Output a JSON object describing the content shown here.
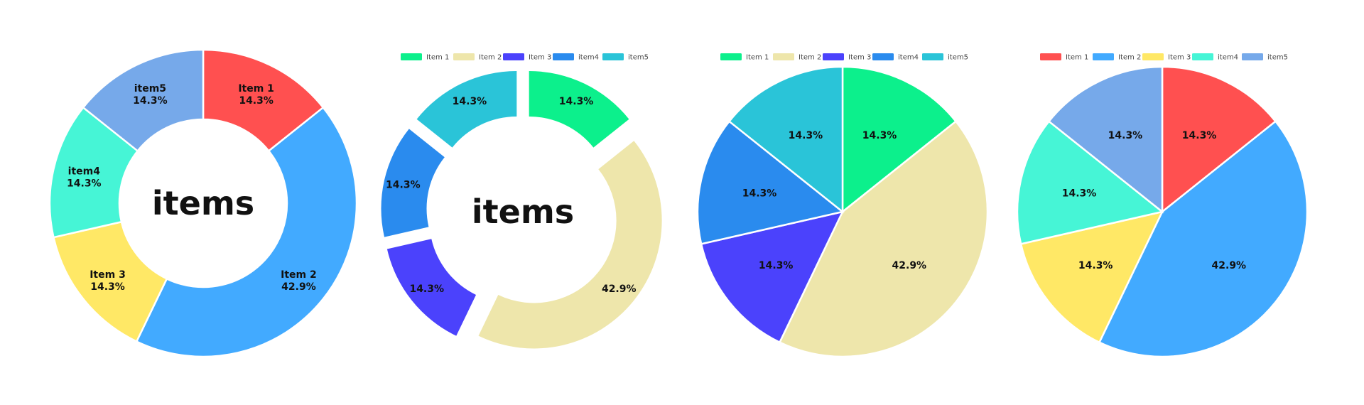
{
  "chart_data": [
    {
      "type": "pie",
      "variant": "donut",
      "center_title": "items",
      "legend": null,
      "slice_labels": "name-and-percent",
      "categories": [
        "Item 1",
        "Item 2",
        "Item 3",
        "item4",
        "item5"
      ],
      "values": [
        1,
        3,
        1,
        1,
        1
      ],
      "percent_labels": [
        "14.3%",
        "42.9%",
        "14.3%",
        "14.3%",
        "14.3%"
      ],
      "colors": [
        "#FF5050",
        "#42AAFF",
        "#FFE866",
        "#46F5D6",
        "#76A9EA"
      ]
    },
    {
      "type": "pie",
      "variant": "donut-exploded",
      "center_title": "items",
      "legend": "top",
      "slice_labels": "percent",
      "categories": [
        "Item 1",
        "Item 2",
        "Item 3",
        "item4",
        "item5"
      ],
      "values": [
        1,
        3,
        1,
        1,
        1
      ],
      "percent_labels": [
        "14.3%",
        "42.9%",
        "14.3%",
        "14.3%",
        "14.3%"
      ],
      "colors": [
        "#0CF08C",
        "#EEE6AB",
        "#4B42FC",
        "#2A8BEE",
        "#2AC4D8"
      ]
    },
    {
      "type": "pie",
      "variant": "pie",
      "center_title": "",
      "legend": "top",
      "slice_labels": "percent",
      "categories": [
        "Item 1",
        "Item 2",
        "Item 3",
        "item4",
        "item5"
      ],
      "values": [
        1,
        3,
        1,
        1,
        1
      ],
      "percent_labels": [
        "14.3%",
        "42.9%",
        "14.3%",
        "14.3%",
        "14.3%"
      ],
      "colors": [
        "#0CF08C",
        "#EEE6AB",
        "#4B42FC",
        "#2A8BEE",
        "#2AC4D8"
      ]
    },
    {
      "type": "pie",
      "variant": "pie",
      "center_title": "",
      "legend": "top",
      "slice_labels": "percent",
      "categories": [
        "Item 1",
        "Item 2",
        "Item 3",
        "item4",
        "item5"
      ],
      "values": [
        1,
        3,
        1,
        1,
        1
      ],
      "percent_labels": [
        "14.3%",
        "42.9%",
        "14.3%",
        "14.3%",
        "14.3%"
      ],
      "colors": [
        "#FF5050",
        "#42AAFF",
        "#FFE866",
        "#46F5D6",
        "#76A9EA"
      ]
    }
  ]
}
